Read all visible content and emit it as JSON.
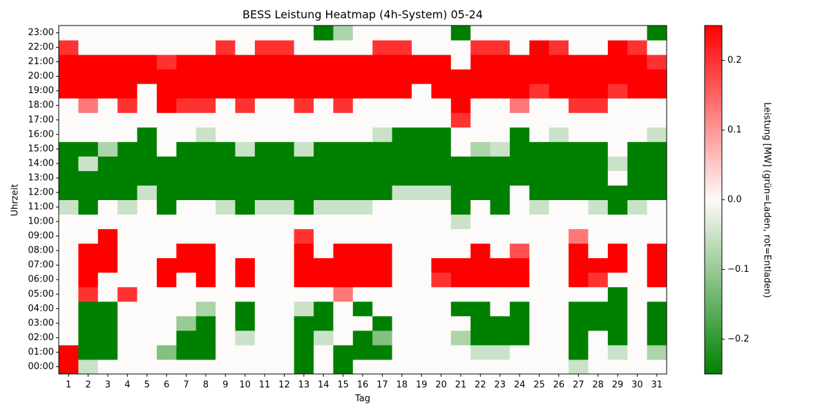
{
  "chart_data": {
    "type": "heatmap",
    "title": "BESS Leistung Heatmap (4h-System) 05-24",
    "x_label": "Tag",
    "y_label": "Uhrzeit",
    "colorbar_label": "Leistung [MW] (grün=Laden, rot=Entladen)",
    "x": [
      1,
      2,
      3,
      4,
      5,
      6,
      7,
      8,
      9,
      10,
      11,
      12,
      13,
      14,
      15,
      16,
      17,
      18,
      19,
      20,
      21,
      22,
      23,
      24,
      25,
      26,
      27,
      28,
      29,
      30,
      31
    ],
    "y": [
      "00:00",
      "01:00",
      "02:00",
      "03:00",
      "04:00",
      "05:00",
      "06:00",
      "07:00",
      "08:00",
      "09:00",
      "10:00",
      "11:00",
      "12:00",
      "13:00",
      "14:00",
      "15:00",
      "16:00",
      "17:00",
      "18:00",
      "19:00",
      "20:00",
      "21:00",
      "22:00",
      "23:00"
    ],
    "colormap": [
      "#008000",
      "#fdfbf9",
      "#ff0000"
    ],
    "clim": [
      -0.25,
      0.25
    ],
    "cticks": [
      {
        "value": -0.2,
        "label": "−0.2"
      },
      {
        "value": -0.1,
        "label": "−0.1"
      },
      {
        "value": 0,
        "label": "0.0"
      },
      0.1,
      0.2
    ],
    "values": [
      [
        0.25,
        -0.05,
        0,
        0,
        0,
        0,
        0,
        0,
        0,
        0,
        0,
        0,
        -0.25,
        0,
        -0.25,
        0,
        0,
        0,
        0,
        0,
        0,
        0,
        0,
        0,
        0,
        0,
        -0.05,
        0,
        0,
        0,
        0
      ],
      [
        0.25,
        -0.25,
        -0.25,
        0,
        0,
        -0.12,
        -0.25,
        -0.25,
        0,
        0,
        0,
        0,
        -0.25,
        0,
        -0.25,
        -0.25,
        -0.25,
        0,
        0,
        0,
        0,
        -0.05,
        -0.05,
        0,
        0,
        0,
        -0.25,
        0,
        -0.05,
        0,
        -0.08
      ],
      [
        0,
        -0.25,
        -0.25,
        0,
        0,
        0,
        -0.25,
        -0.25,
        0,
        -0.05,
        0,
        0,
        -0.25,
        -0.05,
        0,
        -0.25,
        -0.12,
        0,
        0,
        0,
        -0.08,
        -0.25,
        -0.25,
        -0.25,
        0,
        0,
        -0.25,
        0,
        -0.25,
        0,
        -0.25
      ],
      [
        0,
        -0.25,
        -0.25,
        0,
        0,
        0,
        -0.1,
        -0.25,
        0,
        -0.25,
        0,
        0,
        -0.25,
        -0.25,
        0,
        0,
        -0.25,
        0,
        0,
        0,
        0,
        -0.25,
        -0.25,
        -0.25,
        0,
        0,
        -0.25,
        -0.25,
        -0.25,
        0,
        -0.25
      ],
      [
        0,
        -0.25,
        -0.25,
        0,
        0,
        0,
        0,
        -0.08,
        0,
        -0.25,
        0,
        0,
        -0.05,
        -0.25,
        0,
        -0.25,
        0,
        0,
        0,
        0,
        -0.25,
        -0.25,
        0,
        -0.25,
        0,
        0,
        -0.25,
        -0.25,
        -0.25,
        0,
        -0.25
      ],
      [
        0,
        0.2,
        0,
        0.2,
        0,
        0,
        0,
        0,
        0,
        0,
        0,
        0,
        0,
        0,
        0.13,
        0,
        0,
        0,
        0,
        0,
        0,
        0,
        0,
        0,
        0,
        0,
        0,
        0,
        -0.25,
        0,
        0
      ],
      [
        0,
        0.25,
        0,
        0,
        0,
        0.25,
        0,
        0.25,
        0,
        0.25,
        0,
        0,
        0.25,
        0.25,
        0.25,
        0.25,
        0.25,
        0,
        0,
        0.2,
        0.25,
        0.25,
        0.25,
        0.25,
        0,
        0,
        0.25,
        0.2,
        0,
        0,
        0.25
      ],
      [
        0,
        0.25,
        0.25,
        0,
        0,
        0.25,
        0.25,
        0.25,
        0,
        0.25,
        0,
        0,
        0.25,
        0.25,
        0.25,
        0.25,
        0.25,
        0,
        0,
        0.25,
        0.25,
        0.25,
        0.25,
        0.25,
        0,
        0,
        0.25,
        0.25,
        0.25,
        0,
        0.25
      ],
      [
        0,
        0.25,
        0.25,
        0,
        0,
        0,
        0.25,
        0.25,
        0,
        0,
        0,
        0,
        0.25,
        0,
        0.25,
        0.25,
        0.25,
        0,
        0,
        0,
        0,
        0.25,
        0,
        0.17,
        0,
        0,
        0.25,
        0,
        0.25,
        0,
        0.25
      ],
      [
        0,
        0,
        0.25,
        0,
        0,
        0,
        0,
        0,
        0,
        0,
        0,
        0,
        0.2,
        0,
        0,
        0,
        0,
        0,
        0,
        0,
        0,
        0,
        0,
        0,
        0,
        0,
        0.13,
        0,
        0,
        0,
        0
      ],
      [
        0,
        0,
        0,
        0,
        0,
        0,
        0,
        0,
        0,
        0,
        0,
        0,
        0,
        0,
        0,
        0,
        0,
        0,
        0,
        0,
        -0.05,
        0,
        0,
        0,
        0,
        0,
        0,
        0,
        0,
        0,
        0
      ],
      [
        -0.05,
        -0.25,
        0,
        -0.05,
        0,
        -0.25,
        0,
        0,
        -0.05,
        -0.25,
        -0.05,
        -0.05,
        -0.25,
        -0.05,
        -0.05,
        -0.05,
        0,
        0,
        0,
        0,
        -0.25,
        0,
        -0.25,
        0,
        -0.05,
        0,
        0,
        -0.05,
        -0.25,
        -0.05,
        0
      ],
      [
        -0.25,
        -0.25,
        -0.25,
        -0.25,
        -0.05,
        -0.25,
        -0.25,
        -0.25,
        -0.25,
        -0.25,
        -0.25,
        -0.25,
        -0.25,
        -0.25,
        -0.25,
        -0.25,
        -0.25,
        -0.05,
        -0.05,
        -0.05,
        -0.25,
        -0.25,
        -0.25,
        0,
        -0.25,
        -0.25,
        -0.25,
        -0.25,
        -0.25,
        -0.25,
        -0.25
      ],
      [
        -0.25,
        -0.25,
        -0.25,
        -0.25,
        -0.25,
        -0.25,
        -0.25,
        -0.25,
        -0.25,
        -0.25,
        -0.25,
        -0.25,
        -0.25,
        -0.25,
        -0.25,
        -0.25,
        -0.25,
        -0.25,
        -0.25,
        -0.25,
        -0.25,
        -0.25,
        -0.25,
        -0.25,
        -0.25,
        -0.25,
        -0.25,
        -0.25,
        0,
        -0.25,
        -0.25
      ],
      [
        -0.25,
        -0.05,
        -0.25,
        -0.25,
        -0.25,
        -0.25,
        -0.25,
        -0.25,
        -0.25,
        -0.25,
        -0.25,
        -0.25,
        -0.25,
        -0.25,
        -0.25,
        -0.25,
        -0.25,
        -0.25,
        -0.25,
        -0.25,
        -0.25,
        -0.25,
        -0.25,
        -0.25,
        -0.25,
        -0.25,
        -0.25,
        -0.25,
        -0.05,
        -0.25,
        -0.25
      ],
      [
        -0.25,
        -0.25,
        -0.08,
        -0.25,
        -0.25,
        0,
        -0.25,
        -0.25,
        -0.25,
        -0.05,
        -0.25,
        -0.25,
        -0.05,
        -0.25,
        -0.25,
        -0.25,
        -0.25,
        -0.25,
        -0.25,
        -0.25,
        0,
        -0.08,
        -0.05,
        -0.25,
        -0.25,
        -0.25,
        -0.25,
        -0.25,
        0,
        -0.25,
        -0.25
      ],
      [
        0,
        0,
        0,
        0,
        -0.25,
        0,
        0,
        -0.05,
        0,
        0,
        0,
        0,
        0,
        0,
        0,
        0,
        -0.05,
        -0.25,
        -0.25,
        -0.25,
        0,
        0,
        0,
        -0.25,
        0,
        -0.05,
        0,
        0,
        0,
        0,
        -0.05
      ],
      [
        0,
        0,
        0,
        0,
        0,
        0,
        0,
        0,
        0,
        0,
        0,
        0,
        0,
        0,
        0,
        0,
        0,
        0,
        0,
        0,
        0.2,
        0,
        0,
        0,
        0,
        0,
        0,
        0,
        0,
        0,
        0
      ],
      [
        0,
        0.13,
        0,
        0.2,
        0,
        0.25,
        0.2,
        0.2,
        0,
        0.2,
        0,
        0,
        0.2,
        0,
        0.2,
        0,
        0,
        0,
        0,
        0,
        0.25,
        0,
        0,
        0.13,
        0,
        0,
        0.2,
        0.2,
        0,
        0,
        0
      ],
      [
        0.25,
        0.25,
        0.25,
        0.25,
        0,
        0.25,
        0.25,
        0.25,
        0.25,
        0.25,
        0.25,
        0.25,
        0.25,
        0.25,
        0.25,
        0.25,
        0.25,
        0.25,
        0,
        0.25,
        0.25,
        0.25,
        0.25,
        0.25,
        0.2,
        0.25,
        0.25,
        0.25,
        0.2,
        0.25,
        0.25
      ],
      [
        0.25,
        0.25,
        0.25,
        0.25,
        0.25,
        0.25,
        0.25,
        0.25,
        0.25,
        0.25,
        0.25,
        0.25,
        0.25,
        0.25,
        0.25,
        0.25,
        0.25,
        0.25,
        0.25,
        0.25,
        0.25,
        0.25,
        0.25,
        0.25,
        0.25,
        0.25,
        0.25,
        0.25,
        0.25,
        0.25,
        0.25
      ],
      [
        0.25,
        0.25,
        0.25,
        0.25,
        0.25,
        0.2,
        0.25,
        0.25,
        0.25,
        0.25,
        0.25,
        0.25,
        0.25,
        0.25,
        0.25,
        0.25,
        0.25,
        0.25,
        0.25,
        0.25,
        0,
        0.25,
        0.25,
        0.25,
        0.25,
        0.25,
        0.25,
        0.25,
        0.25,
        0.25,
        0.2
      ],
      [
        0.2,
        0,
        0,
        0,
        0,
        0,
        0,
        0,
        0.2,
        0,
        0.2,
        0.2,
        0,
        0,
        0,
        0,
        0.2,
        0.2,
        0,
        0,
        0,
        0.2,
        0.2,
        0,
        0.25,
        0.2,
        0,
        0,
        0.25,
        0.2,
        0
      ],
      [
        0,
        0,
        0,
        0,
        0,
        0,
        0,
        0,
        0,
        0,
        0,
        0,
        0,
        -0.25,
        -0.08,
        0,
        0,
        0,
        0,
        0,
        -0.25,
        0,
        0,
        0,
        0,
        0,
        0,
        0,
        0,
        0,
        -0.25
      ]
    ]
  }
}
